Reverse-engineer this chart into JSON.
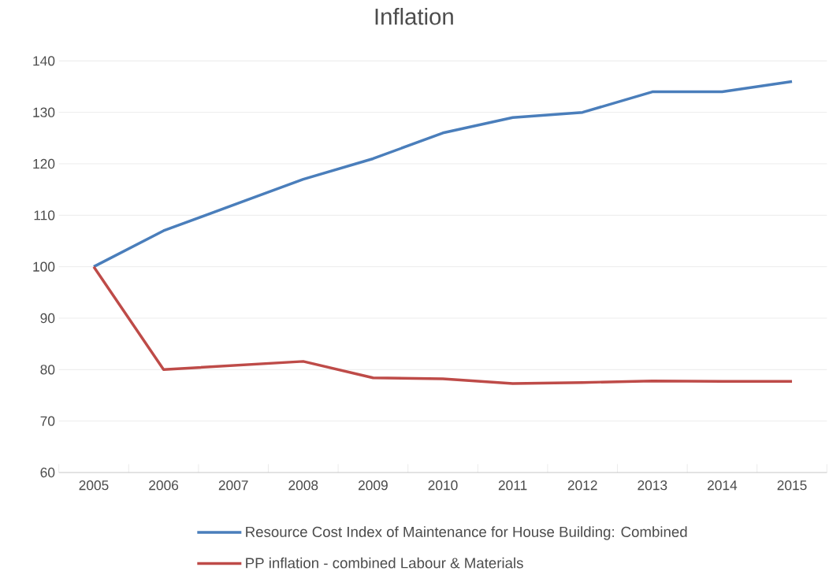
{
  "chart_data": {
    "type": "line",
    "title": "Inflation",
    "categories": [
      "2005",
      "2006",
      "2007",
      "2008",
      "2009",
      "2010",
      "2011",
      "2012",
      "2013",
      "2014",
      "2015"
    ],
    "series": [
      {
        "name": "Resource Cost Index of Maintenance for House Building: Combined",
        "color": "#4a7ebb",
        "values": [
          100,
          107,
          112,
          117,
          121,
          126,
          129,
          130,
          134,
          134,
          136
        ]
      },
      {
        "name": "PP inflation - combined Labour & Materials",
        "color": "#be4b48",
        "values": [
          100,
          80,
          80.8,
          81.6,
          78.4,
          78.2,
          77.3,
          77.5,
          77.8,
          77.7,
          77.7
        ]
      }
    ],
    "ylim": [
      60,
      140
    ],
    "yticks": [
      60,
      70,
      80,
      90,
      100,
      110,
      120,
      130,
      140
    ],
    "grid": "y",
    "legend": "bottom",
    "marker": "none",
    "line_style": "solid"
  }
}
